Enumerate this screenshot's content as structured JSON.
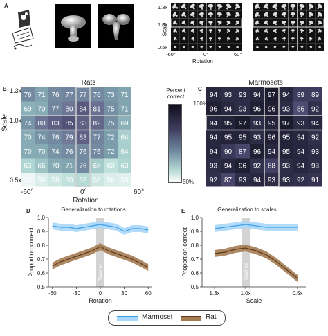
{
  "panel_labels": {
    "a": "A",
    "b": "B",
    "c": "C",
    "d": "D",
    "e": "E"
  },
  "panel_a": {
    "scale_label": "Scale",
    "rotation_label": "Rotation",
    "scale_ticks": [
      "1.3x",
      "1.0x",
      "0.5x"
    ],
    "rotation_ticks": [
      "-60°",
      "0°",
      "60°"
    ]
  },
  "colorbar": {
    "title_line1": "Percent",
    "title_line2": "correct",
    "top": "100%",
    "bottom": "50%",
    "top_color": "#0f0f1c",
    "bottom_color": "#ffffff"
  },
  "chart_data": [
    {
      "type": "heatmap",
      "title": "Rats",
      "xlabel": "Rotation",
      "ylabel": "Scale",
      "x_ticks": [
        "-60°",
        "0°",
        "60°"
      ],
      "y_ticks": [
        "1.3x",
        "1.0x",
        "0.5x"
      ],
      "values": [
        [
          76,
          71,
          76,
          77,
          77,
          76,
          73,
          71
        ],
        [
          69,
          70,
          77,
          80,
          84,
          81,
          75,
          71
        ],
        [
          74,
          80,
          83,
          85,
          83,
          82,
          75,
          69
        ],
        [
          70,
          74,
          76,
          79,
          83,
          77,
          72,
          64
        ],
        [
          70,
          70,
          74,
          76,
          76,
          76,
          72,
          64
        ],
        [
          63,
          66,
          70,
          71,
          76,
          65,
          60,
          63
        ],
        [
          53,
          56,
          58,
          60,
          62,
          58,
          56,
          55
        ]
      ],
      "range": [
        50,
        100
      ]
    },
    {
      "type": "heatmap",
      "title": "Marmosets",
      "values": [
        [
          94,
          93,
          93,
          94,
          97,
          94,
          89,
          89
        ],
        [
          96,
          94,
          93,
          96,
          96,
          93,
          86,
          92
        ],
        [
          94,
          95,
          97,
          93,
          95,
          97,
          93,
          94
        ],
        [
          94,
          95,
          95,
          93,
          96,
          95,
          94,
          92
        ],
        [
          94,
          90,
          87,
          96,
          94,
          95,
          94,
          93
        ],
        [
          93,
          94,
          96,
          92,
          88,
          93,
          94,
          93
        ],
        [
          92,
          87,
          93,
          94,
          93,
          93,
          92,
          91
        ]
      ],
      "range": [
        50,
        100
      ]
    },
    {
      "type": "line",
      "title": "Generalization to rotations",
      "xlabel": "Rotation",
      "ylabel": "Proportion correct",
      "x": [
        -60,
        -50,
        -40,
        -30,
        -20,
        -10,
        0,
        10,
        20,
        30,
        40,
        50,
        60
      ],
      "xlim": [
        -65,
        65
      ],
      "ylim": [
        0.5,
        1.0
      ],
      "x_ticks": [
        -60,
        -30,
        0,
        30,
        60
      ],
      "y_ticks": [
        0.5,
        0.6,
        0.7,
        0.8,
        0.9,
        1.0
      ],
      "trained_label": "Trained",
      "series": [
        {
          "name": "Marmoset",
          "color": "#3ea0e6",
          "band_color": "#a9d7f7",
          "values": [
            0.94,
            0.93,
            0.93,
            0.92,
            0.93,
            0.94,
            0.95,
            0.94,
            0.93,
            0.9,
            0.92,
            0.92,
            0.91
          ]
        },
        {
          "name": "Rat",
          "color": "#5a3a1c",
          "band_color": "#a57b52",
          "values": [
            0.65,
            0.68,
            0.7,
            0.72,
            0.74,
            0.76,
            0.79,
            0.76,
            0.74,
            0.72,
            0.7,
            0.67,
            0.64
          ]
        }
      ]
    },
    {
      "type": "line",
      "title": "Generalization to scales",
      "xlabel": "Scale",
      "ylabel": "Proportion correct",
      "x": [
        1.3,
        1.2,
        1.1,
        1.0,
        0.9,
        0.8,
        0.7,
        0.6,
        0.5
      ],
      "x_ticks": [
        "1.3x",
        "1.0x",
        "0.5x"
      ],
      "ylim": [
        0.5,
        1.0
      ],
      "y_ticks": [
        0.5,
        0.6,
        0.7,
        0.8,
        0.9,
        1.0
      ],
      "trained_label": "Trained",
      "series": [
        {
          "name": "Marmoset",
          "color": "#3ea0e6",
          "band_color": "#a9d7f7",
          "values": [
            0.92,
            0.93,
            0.94,
            0.95,
            0.94,
            0.93,
            0.93,
            0.93,
            0.93
          ]
        },
        {
          "name": "Rat",
          "color": "#5a3a1c",
          "band_color": "#a57b52",
          "values": [
            0.74,
            0.75,
            0.77,
            0.78,
            0.76,
            0.73,
            0.68,
            0.62,
            0.56
          ]
        }
      ]
    }
  ],
  "legend": {
    "items": [
      {
        "name": "Marmoset"
      },
      {
        "name": "Rat"
      }
    ]
  }
}
